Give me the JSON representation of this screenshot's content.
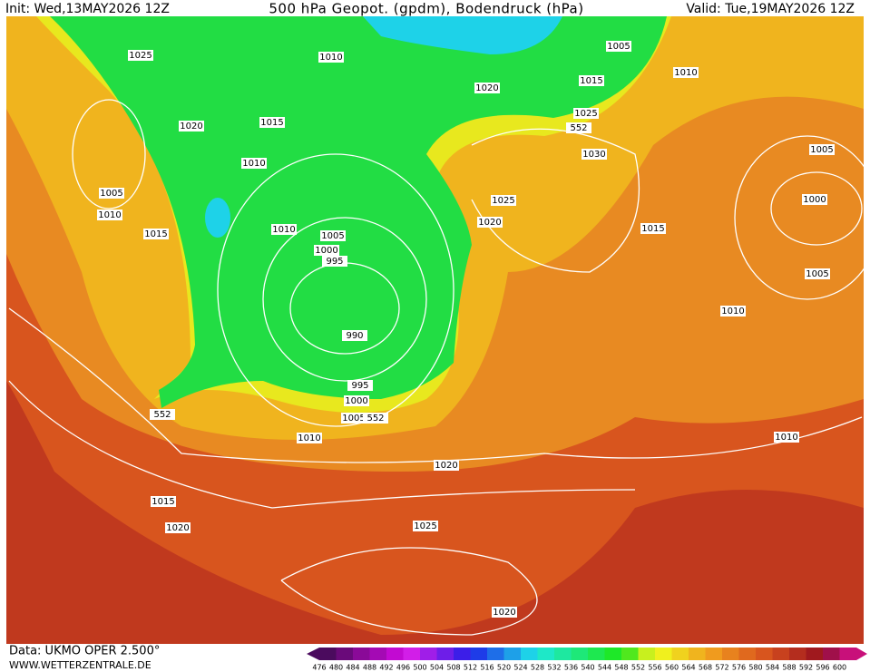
{
  "header": {
    "init": "Init: Wed,13MAY2026 12Z",
    "title": "500 hPa Geopot. (gpdm), Bodendruck (hPa)",
    "valid": "Valid: Tue,19MAY2026 12Z"
  },
  "isobar_labels": [
    "1025",
    "1010",
    "1005",
    "1010",
    "1015",
    "1020",
    "1025",
    "552",
    "1020",
    "1015",
    "1030",
    "1010",
    "1005",
    "1005",
    "1025",
    "1000",
    "1010",
    "1020",
    "1015",
    "1010",
    "1005",
    "1015",
    "1000",
    "995",
    "1005",
    "1010",
    "990",
    "995",
    "1000",
    "1005",
    "552",
    "552",
    "1010",
    "1010",
    "1020",
    "1015",
    "1020",
    "1025",
    "1020"
  ],
  "scale": {
    "values": [
      476,
      480,
      484,
      488,
      492,
      496,
      500,
      504,
      508,
      512,
      516,
      520,
      524,
      528,
      532,
      536,
      540,
      544,
      548,
      552,
      556,
      560,
      564,
      568,
      572,
      576,
      580,
      584,
      588,
      592,
      596,
      600
    ],
    "colors": [
      "#4b0b5e",
      "#6a0a7a",
      "#8a0a98",
      "#a40ab4",
      "#c20ad2",
      "#d21ee8",
      "#a01ee8",
      "#6e1ee8",
      "#3c1ee8",
      "#1e3ce8",
      "#1e6ee8",
      "#1ea0e8",
      "#1ed2e8",
      "#1ee8c8",
      "#1ee8a0",
      "#1ee878",
      "#1ee850",
      "#1ee828",
      "#50e81e",
      "#c8f01e",
      "#f0f01e",
      "#f0d21e",
      "#f0b41e",
      "#f09b1e",
      "#e8821e",
      "#e0691e",
      "#d8551e",
      "#c8411e",
      "#b42d1e",
      "#a0191e",
      "#a0104a",
      "#c8107a"
    ]
  },
  "footer": {
    "data": "Data: UKMO OPER 2.500°",
    "site": "WWW.WETTERZENTRALE.DE"
  }
}
